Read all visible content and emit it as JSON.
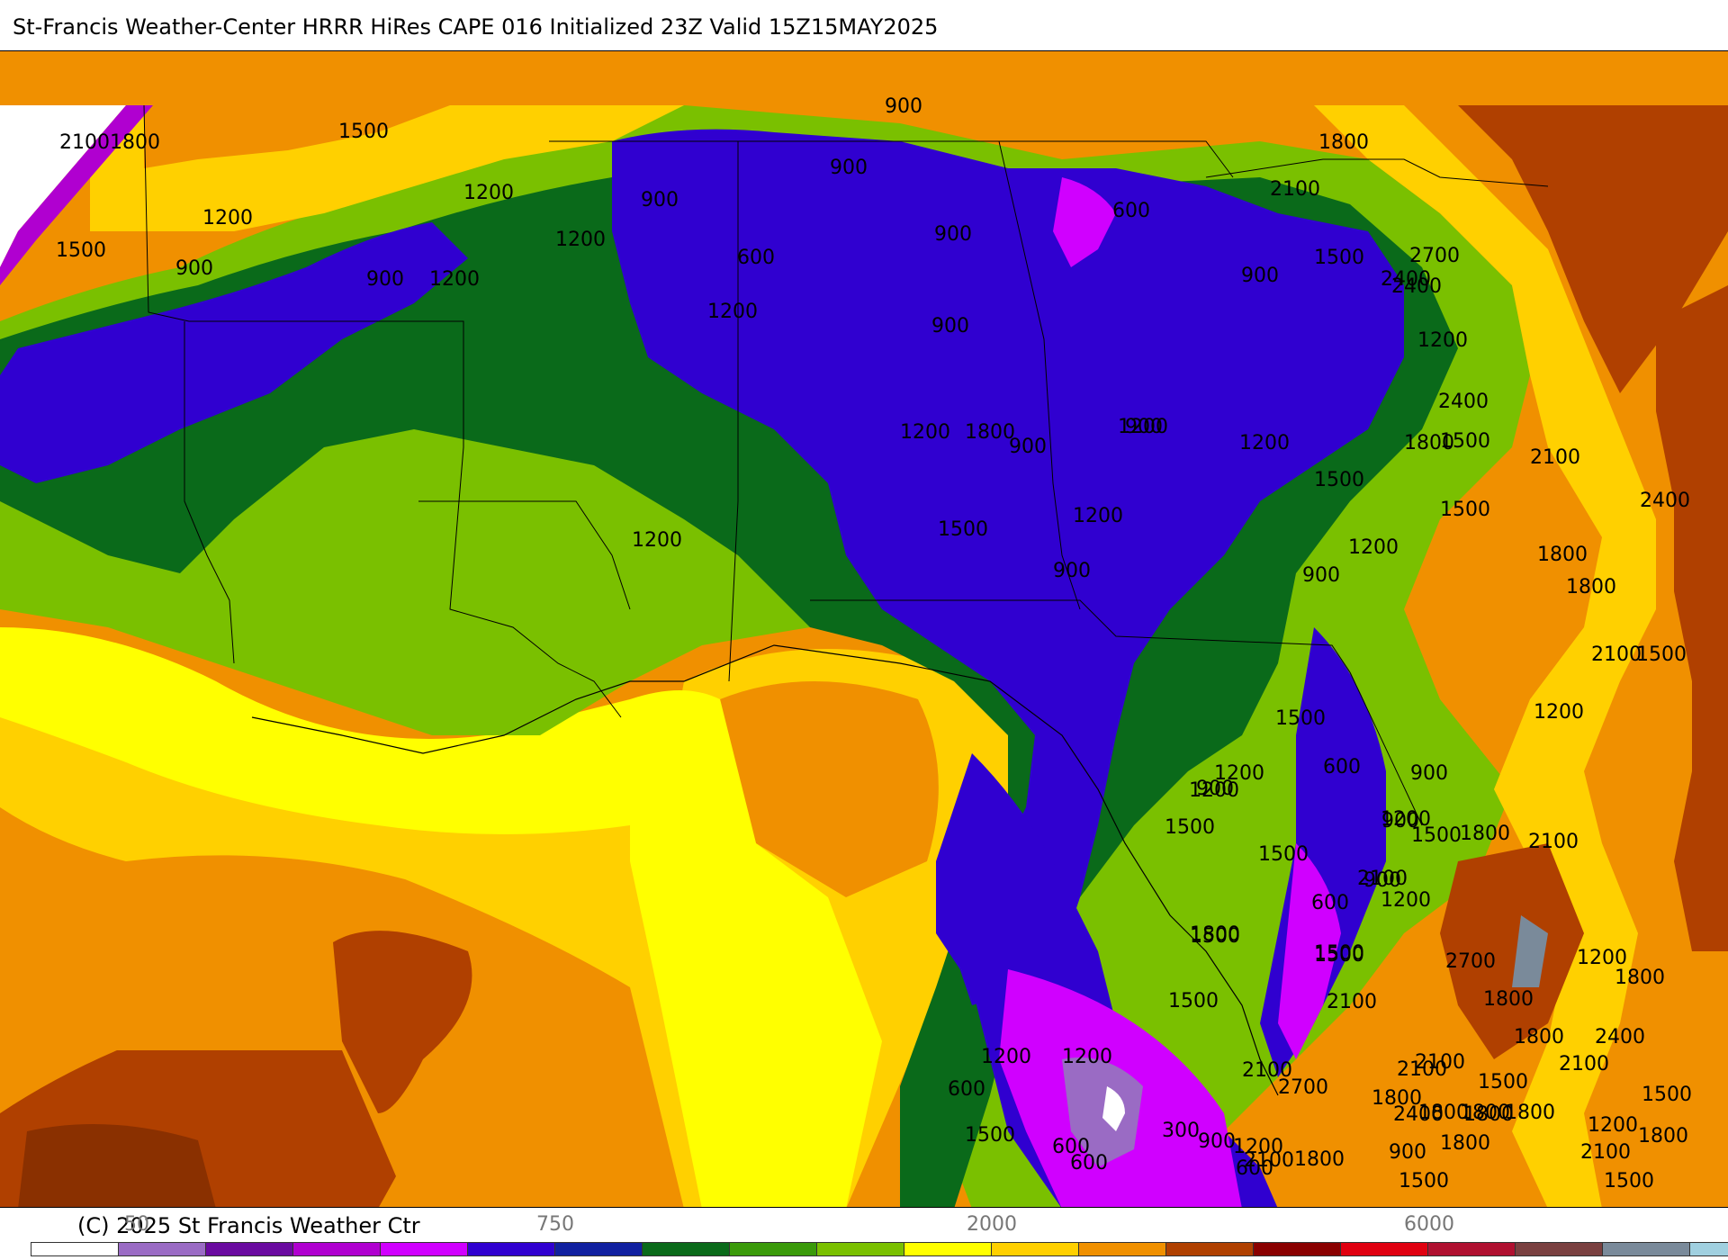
{
  "title": "St-Francis Weather-Center HRRR HiRes CAPE  016 Initialized  23Z Valid 15Z15MAY2025",
  "copyright": "(C) 2025 St Francis Weather Ctr",
  "colorbar": {
    "tick_labels": [
      "50",
      "750",
      "2000",
      "6000"
    ],
    "colors": [
      "#ffffff",
      "#9a6bc4",
      "#6a0aa0",
      "#b000d0",
      "#d000ff",
      "#3000d0",
      "#1020a0",
      "#0a6a1a",
      "#3a9a0a",
      "#7ac000",
      "#ffff00",
      "#ffd000",
      "#f09000",
      "#b04000",
      "#8a0000",
      "#e00010",
      "#b01030",
      "#7a4040",
      "#7a8a9a",
      "#a0d0e0"
    ]
  },
  "map": {
    "product": "CAPE",
    "contour_values": [
      300,
      600,
      900,
      1200,
      1500,
      1800,
      2100,
      2400,
      2700
    ],
    "labels": [
      {
        "text": "2100"
      },
      {
        "text": "1800"
      },
      {
        "text": "1500"
      },
      {
        "text": "1200"
      },
      {
        "text": "1200"
      },
      {
        "text": "1500"
      },
      {
        "text": "900"
      },
      {
        "text": "900"
      },
      {
        "text": "1200"
      },
      {
        "text": "900"
      },
      {
        "text": "1200"
      },
      {
        "text": "900"
      },
      {
        "text": "900"
      },
      {
        "text": "900"
      },
      {
        "text": "600"
      },
      {
        "text": "900"
      },
      {
        "text": "1200"
      },
      {
        "text": "600"
      },
      {
        "text": "2100"
      },
      {
        "text": "1800"
      },
      {
        "text": "900"
      },
      {
        "text": "1500"
      },
      {
        "text": "2400"
      },
      {
        "text": "2400"
      },
      {
        "text": "2700"
      },
      {
        "text": "1200"
      },
      {
        "text": "900"
      },
      {
        "text": "2400"
      },
      {
        "text": "1200"
      },
      {
        "text": "900"
      },
      {
        "text": "1200"
      },
      {
        "text": "1800"
      },
      {
        "text": "1500"
      },
      {
        "text": "2100"
      },
      {
        "text": "1200"
      },
      {
        "text": "1500"
      },
      {
        "text": "1200"
      },
      {
        "text": "1200"
      },
      {
        "text": "1500"
      },
      {
        "text": "1800"
      },
      {
        "text": "900"
      },
      {
        "text": "1200"
      },
      {
        "text": "1500"
      },
      {
        "text": "1800"
      },
      {
        "text": "2400"
      },
      {
        "text": "1800"
      },
      {
        "text": "2100"
      },
      {
        "text": "1500"
      },
      {
        "text": "1200"
      },
      {
        "text": "900"
      },
      {
        "text": "1500"
      },
      {
        "text": "1200"
      },
      {
        "text": "600"
      },
      {
        "text": "900"
      },
      {
        "text": "1200"
      },
      {
        "text": "900"
      },
      {
        "text": "2100"
      },
      {
        "text": "1800"
      },
      {
        "text": "1500"
      },
      {
        "text": "900"
      },
      {
        "text": "1200"
      },
      {
        "text": "2100"
      },
      {
        "text": "900"
      },
      {
        "text": "600"
      },
      {
        "text": "1200"
      },
      {
        "text": "1500"
      },
      {
        "text": "1500"
      },
      {
        "text": "1800"
      },
      {
        "text": "1500"
      },
      {
        "text": "1500"
      },
      {
        "text": "2100"
      },
      {
        "text": "1500"
      },
      {
        "text": "1500"
      },
      {
        "text": "2100"
      },
      {
        "text": "2100"
      },
      {
        "text": "1800"
      },
      {
        "text": "1800"
      },
      {
        "text": "1500"
      },
      {
        "text": "1800"
      },
      {
        "text": "1500"
      },
      {
        "text": "1800"
      },
      {
        "text": "600"
      },
      {
        "text": "1200"
      },
      {
        "text": "600"
      },
      {
        "text": "1500"
      },
      {
        "text": "2100"
      },
      {
        "text": "2700"
      },
      {
        "text": "1800"
      },
      {
        "text": "2400"
      },
      {
        "text": "2100"
      },
      {
        "text": "1800"
      },
      {
        "text": "1800"
      },
      {
        "text": "2400"
      },
      {
        "text": "2100"
      },
      {
        "text": "1800"
      },
      {
        "text": "1500"
      },
      {
        "text": "1200"
      },
      {
        "text": "900"
      },
      {
        "text": "900"
      },
      {
        "text": "600"
      },
      {
        "text": "300"
      },
      {
        "text": "1200"
      },
      {
        "text": "1200"
      },
      {
        "text": "600"
      },
      {
        "text": "1800"
      },
      {
        "text": "1800"
      },
      {
        "text": "2100"
      },
      {
        "text": "1500"
      },
      {
        "text": "1800"
      },
      {
        "text": "1200"
      },
      {
        "text": "2700"
      }
    ]
  }
}
